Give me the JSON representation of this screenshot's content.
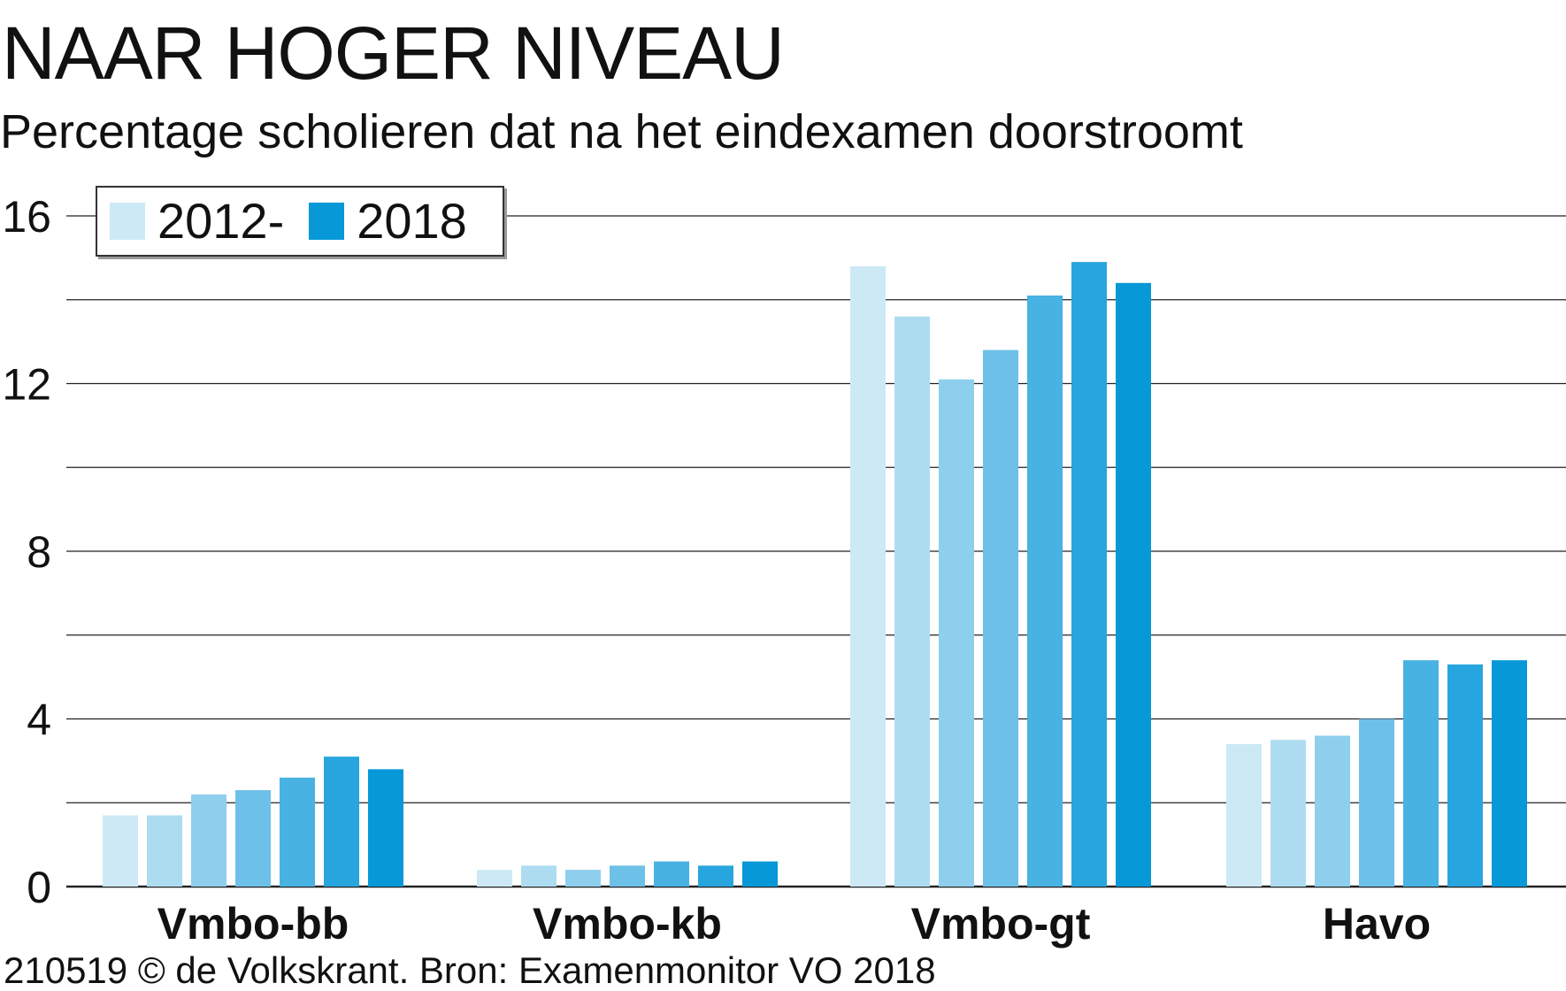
{
  "header": {
    "title": "NAAR HOGER NIVEAU",
    "subtitle": "Percentage scholieren dat na het eindexamen doorstroomt"
  },
  "legend": {
    "start_label": "2012-",
    "end_label": "2018",
    "start_color": "#cde9f6",
    "end_color": "#0798d8"
  },
  "footer": {
    "source": "210519 © de Volkskrant. Bron: Examenmonitor VO 2018"
  },
  "chart_data": {
    "type": "bar",
    "title": "NAAR HOGER NIVEAU",
    "subtitle": "Percentage scholieren dat na het eindexamen doorstroomt",
    "xlabel": "",
    "ylabel": "",
    "ylim": [
      0,
      16
    ],
    "yticks": [
      0,
      4,
      8,
      12,
      16
    ],
    "gridlines": [
      0,
      2,
      4,
      6,
      8,
      10,
      12,
      14,
      16
    ],
    "categories": [
      "Vmbo-bb",
      "Vmbo-kb",
      "Vmbo-gt",
      "Havo"
    ],
    "series": [
      {
        "name": "2012",
        "color": "#cde9f6",
        "values": [
          1.7,
          0.4,
          14.8,
          3.4
        ]
      },
      {
        "name": "2013",
        "color": "#addcf1",
        "values": [
          1.7,
          0.5,
          13.6,
          3.5
        ]
      },
      {
        "name": "2014",
        "color": "#8ecfed",
        "values": [
          2.2,
          0.4,
          12.1,
          3.6
        ]
      },
      {
        "name": "2015",
        "color": "#6dc1e8",
        "values": [
          2.3,
          0.5,
          12.8,
          4.0
        ]
      },
      {
        "name": "2016",
        "color": "#48b2e2",
        "values": [
          2.6,
          0.6,
          14.1,
          5.4
        ]
      },
      {
        "name": "2017",
        "color": "#27a5de",
        "values": [
          3.1,
          0.5,
          14.9,
          5.3
        ]
      },
      {
        "name": "2018",
        "color": "#0798d8",
        "values": [
          2.8,
          0.6,
          14.4,
          5.4
        ]
      }
    ]
  }
}
